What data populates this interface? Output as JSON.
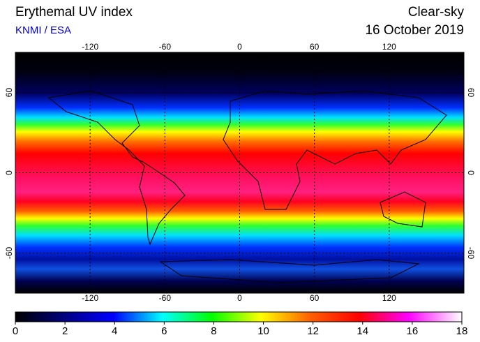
{
  "header": {
    "title": "Erythemal UV index",
    "source": "KNMI / ESA",
    "condition": "Clear-sky",
    "date": "16 October 2019"
  },
  "map": {
    "lonlim": [
      -180,
      180
    ],
    "latlim": [
      -90,
      90
    ],
    "lon_ticks": [
      -120,
      -60,
      0,
      60,
      120
    ],
    "lat_ticks": [
      60,
      0,
      -60
    ],
    "grid": true
  },
  "colorbar": {
    "range": [
      0,
      18
    ],
    "ticks": [
      0,
      2,
      4,
      6,
      8,
      10,
      12,
      14,
      16,
      18
    ]
  }
}
